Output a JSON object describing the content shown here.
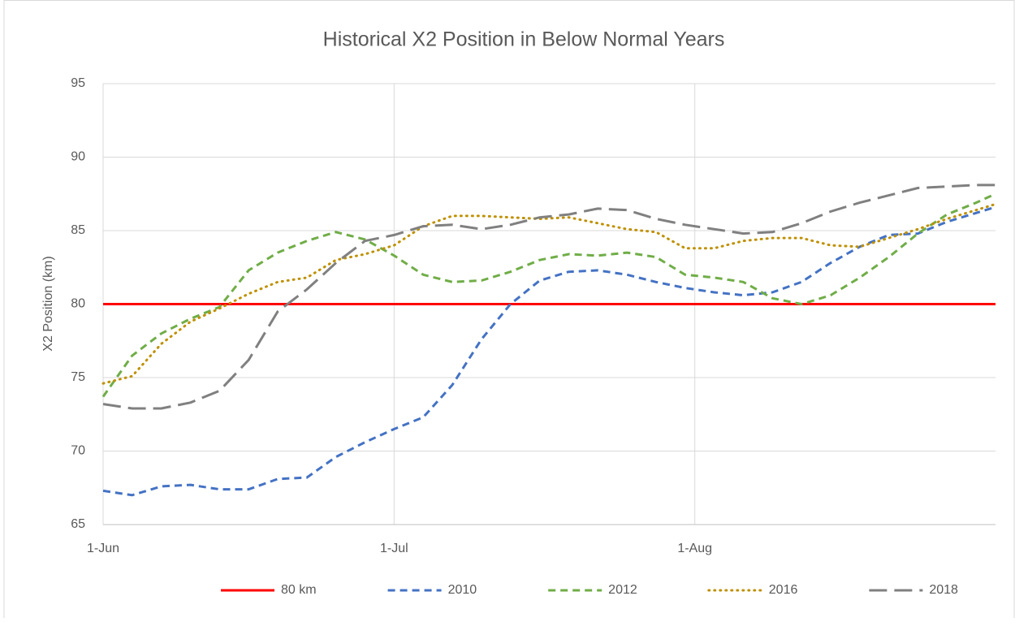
{
  "chart_data": {
    "type": "line",
    "title": "Historical X2 Position in Below Normal Years",
    "ylabel": "X2 Position (km)",
    "xlim": [
      0,
      92
    ],
    "xticks": [
      {
        "value": 0,
        "label": "1-Jun"
      },
      {
        "value": 30,
        "label": "1-Jul"
      },
      {
        "value": 61,
        "label": "1-Aug"
      }
    ],
    "ylim": [
      65,
      95
    ],
    "yticks": [
      65,
      70,
      75,
      80,
      85,
      90,
      95
    ],
    "grid": true,
    "legend": "bottom",
    "series": [
      {
        "name": "80 km",
        "color": "#ff0000",
        "style": "solid",
        "x": [
          0,
          92
        ],
        "values": [
          80,
          80
        ]
      },
      {
        "name": "2010",
        "color": "#4472c4",
        "style": "dash",
        "x": [
          0,
          3,
          6,
          9,
          12,
          15,
          18,
          21,
          24,
          27,
          30,
          33,
          36,
          39,
          42,
          45,
          48,
          51,
          54,
          57,
          60,
          63,
          66,
          69,
          72,
          75,
          78,
          81,
          84,
          87,
          90,
          92
        ],
        "values": [
          67.3,
          67.0,
          67.6,
          67.7,
          67.4,
          67.4,
          68.1,
          68.2,
          69.6,
          70.6,
          71.5,
          72.3,
          74.5,
          77.6,
          80.0,
          81.6,
          82.2,
          82.3,
          82.0,
          81.5,
          81.1,
          80.8,
          80.6,
          80.8,
          81.5,
          82.8,
          83.9,
          84.7,
          84.8,
          85.6,
          86.2,
          86.6
        ]
      },
      {
        "name": "2012",
        "color": "#70ad47",
        "style": "dash",
        "x": [
          0,
          3,
          6,
          9,
          12,
          15,
          18,
          21,
          24,
          27,
          30,
          33,
          36,
          39,
          42,
          45,
          48,
          51,
          54,
          57,
          60,
          63,
          66,
          69,
          72,
          75,
          78,
          81,
          84,
          87,
          90,
          92
        ],
        "values": [
          73.7,
          76.5,
          78.0,
          79.0,
          79.8,
          82.3,
          83.5,
          84.3,
          84.9,
          84.4,
          83.3,
          82.0,
          81.5,
          81.6,
          82.2,
          83.0,
          83.4,
          83.3,
          83.5,
          83.2,
          82.0,
          81.8,
          81.5,
          80.4,
          80.0,
          80.6,
          81.8,
          83.2,
          84.8,
          86.1,
          86.9,
          87.5
        ]
      },
      {
        "name": "2016",
        "color": "#bf9000",
        "style": "dot",
        "x": [
          0,
          3,
          6,
          9,
          12,
          15,
          18,
          21,
          24,
          27,
          30,
          33,
          36,
          39,
          42,
          45,
          48,
          51,
          54,
          57,
          60,
          63,
          66,
          69,
          72,
          75,
          78,
          81,
          84,
          87,
          90,
          92
        ],
        "values": [
          74.6,
          75.1,
          77.3,
          78.8,
          79.7,
          80.7,
          81.5,
          81.8,
          83.0,
          83.4,
          84.0,
          85.3,
          86.0,
          86.0,
          85.9,
          85.8,
          85.9,
          85.5,
          85.1,
          84.9,
          83.8,
          83.8,
          84.3,
          84.5,
          84.5,
          84.0,
          83.9,
          84.5,
          85.1,
          85.8,
          86.4,
          86.8
        ]
      },
      {
        "name": "2018",
        "color": "#808080",
        "style": "longdash",
        "x": [
          0,
          3,
          6,
          9,
          12,
          15,
          18,
          21,
          24,
          27,
          30,
          33,
          36,
          39,
          42,
          45,
          48,
          51,
          54,
          57,
          60,
          63,
          66,
          69,
          72,
          75,
          78,
          81,
          84,
          87,
          90,
          92
        ],
        "values": [
          73.2,
          72.9,
          72.9,
          73.3,
          74.1,
          76.2,
          79.5,
          81.0,
          82.8,
          84.3,
          84.7,
          85.3,
          85.4,
          85.1,
          85.4,
          85.9,
          86.1,
          86.5,
          86.4,
          85.8,
          85.4,
          85.1,
          84.8,
          84.9,
          85.5,
          86.3,
          86.9,
          87.4,
          87.9,
          88.0,
          88.1,
          88.1
        ]
      }
    ]
  }
}
